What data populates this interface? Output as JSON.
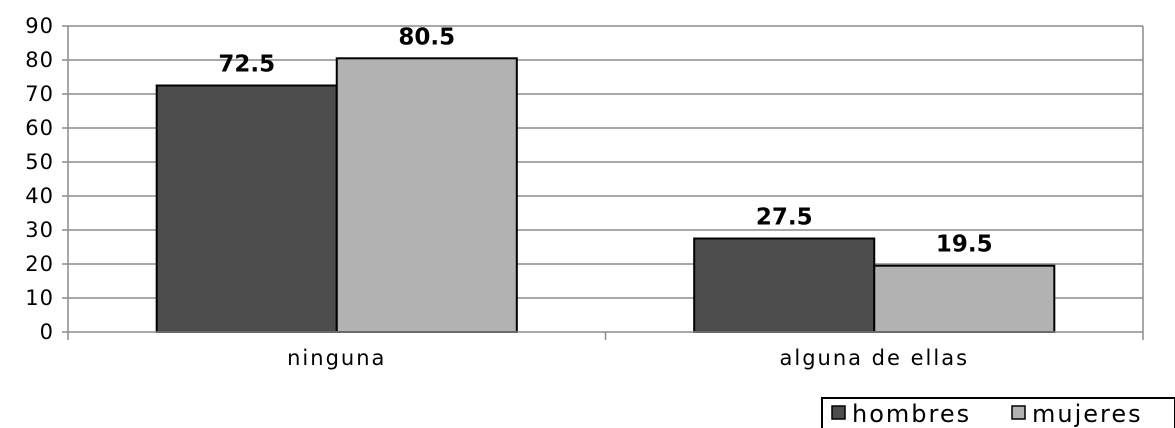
{
  "chart_data": {
    "type": "bar",
    "categories": [
      "ninguna",
      "alguna de ellas"
    ],
    "series": [
      {
        "name": "hombres",
        "values": [
          72.5,
          27.5
        ],
        "color": "#4d4d4d"
      },
      {
        "name": "mujeres",
        "values": [
          80.5,
          19.5
        ],
        "color": "#b2b2b2"
      }
    ],
    "data_labels": [
      [
        "72.5",
        "27.5"
      ],
      [
        "80.5",
        "19.5"
      ]
    ],
    "ylim": [
      0,
      90
    ],
    "yticks": [
      0,
      10,
      20,
      30,
      40,
      50,
      60,
      70,
      80,
      90
    ],
    "ytick_labels": [
      "0",
      "10",
      "20",
      "30",
      "40",
      "50",
      "60",
      "70",
      "80",
      "90"
    ],
    "grid": true,
    "legend_position": "bottom-right",
    "title": "",
    "xlabel": "",
    "ylabel": ""
  }
}
